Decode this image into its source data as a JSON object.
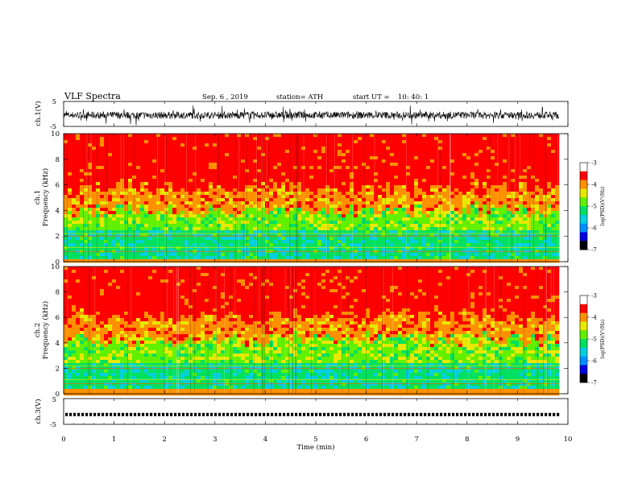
{
  "header": {
    "title": "VLF Spectra",
    "date": "Sep. 6 , 2019",
    "station": "station= ATH",
    "start_label": "start UT =",
    "start_time": "10: 40: 1"
  },
  "colors": {
    "spectrum_scale": [
      "#000000",
      "#0000e0",
      "#0090ff",
      "#00d0e0",
      "#00e060",
      "#60f000",
      "#e8e800",
      "#ff9000",
      "#ff0000",
      "#ffffff"
    ]
  },
  "chart_data": [
    {
      "type": "line",
      "name": "ch1-waveform",
      "ylabel": "ch.1(V)",
      "ylim": [
        -5,
        5
      ],
      "yticks": [
        "5",
        "-5"
      ],
      "xlim": [
        0,
        10
      ],
      "trace_extent_min": [
        0,
        9.82
      ],
      "baseline_level": -0.5,
      "noise_amplitude": 1.8
    },
    {
      "type": "heatmap",
      "name": "ch1-spectrogram",
      "ylabel": "Frequency (kHz)",
      "channel_label": "ch.1",
      "ylim": [
        0,
        10
      ],
      "yticks": [
        "0",
        "2",
        "4",
        "6",
        "8",
        "10"
      ],
      "xlim": [
        0,
        10
      ],
      "data_extent_min": [
        0,
        9.82
      ],
      "lowband_top_khz": 4.0,
      "colorbar": {
        "label": "log(PSD)(V²/Hz)",
        "range": [
          -7,
          -3
        ],
        "ticks": [
          "-3",
          "-4",
          "-5",
          "-6",
          "-7"
        ]
      }
    },
    {
      "type": "heatmap",
      "name": "ch2-spectrogram",
      "ylabel": "Frequency (kHz)",
      "channel_label": "ch.2",
      "ylim": [
        0,
        10
      ],
      "yticks": [
        "0",
        "2",
        "4",
        "6",
        "8",
        "10"
      ],
      "xlim": [
        0,
        10
      ],
      "data_extent_min": [
        0,
        9.82
      ],
      "lowband_top_khz": 4.3,
      "colorbar": {
        "label": "log(PSD)(V²/Hz)",
        "range": [
          -7,
          -3
        ],
        "ticks": [
          "-3",
          "-4",
          "-5",
          "-6",
          "-7"
        ]
      }
    },
    {
      "type": "line",
      "name": "ch3-signal",
      "ylabel": "ch.3(V)",
      "ylim": [
        -5,
        5
      ],
      "yticks": [
        "5",
        "-5"
      ],
      "xlim": [
        0,
        10
      ],
      "xlabel": "Time (min)",
      "xticks": [
        "0",
        "1",
        "2",
        "3",
        "4",
        "5",
        "6",
        "7",
        "8",
        "9",
        "10"
      ],
      "trace_extent_min": [
        0,
        9.82
      ],
      "level": -1.2
    }
  ]
}
